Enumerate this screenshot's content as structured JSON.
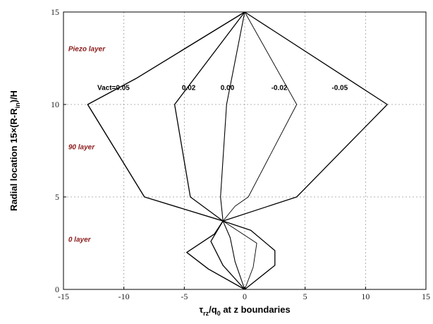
{
  "chart_data": {
    "type": "line",
    "xlim": [
      -15,
      15
    ],
    "ylim": [
      0,
      15
    ],
    "xticks": [
      -15,
      -10,
      -5,
      0,
      5,
      10,
      15
    ],
    "yticks": [
      0,
      5,
      10,
      15
    ],
    "grid": true,
    "xlabel": {
      "main": "τ",
      "sub1": "rz",
      "mid": "/q",
      "sub2": "0",
      "tail": " at z boundaries"
    },
    "ylabel": {
      "pre": "Radial location  15×(R-R",
      "sub": "in",
      "post": ")/H"
    },
    "series": [
      {
        "name": "Vact=0.05",
        "points": [
          [
            0,
            0
          ],
          [
            -3.0,
            1.1
          ],
          [
            -4.8,
            2.0
          ],
          [
            -2.5,
            3.0
          ],
          [
            -1.8,
            3.7
          ],
          [
            -8.3,
            5.0
          ],
          [
            -13.0,
            10.0
          ],
          [
            -9.0,
            11.4
          ],
          [
            0,
            15
          ]
        ]
      },
      {
        "name": "0.02",
        "points": [
          [
            0,
            0
          ],
          [
            -1.8,
            1.3
          ],
          [
            -2.8,
            2.6
          ],
          [
            -1.8,
            3.7
          ],
          [
            -4.5,
            5.0
          ],
          [
            -5.8,
            10.0
          ],
          [
            0,
            15
          ]
        ]
      },
      {
        "name": "0.00",
        "points": [
          [
            0,
            0
          ],
          [
            -0.8,
            1.5
          ],
          [
            -1.2,
            2.8
          ],
          [
            -1.8,
            3.7
          ],
          [
            -2.0,
            5.0
          ],
          [
            -1.5,
            10.0
          ],
          [
            0,
            15
          ]
        ]
      },
      {
        "name": "-0.02",
        "points": [
          [
            0,
            0
          ],
          [
            0.7,
            1.2
          ],
          [
            1.0,
            2.5
          ],
          [
            -1.8,
            3.7
          ],
          [
            -0.8,
            4.5
          ],
          [
            0.3,
            5.0
          ],
          [
            4.3,
            10.0
          ],
          [
            0,
            15
          ]
        ]
      },
      {
        "name": "-0.05",
        "points": [
          [
            0,
            0
          ],
          [
            2.5,
            1.3
          ],
          [
            2.5,
            2.1
          ],
          [
            0.5,
            3.2
          ],
          [
            -1.8,
            3.7
          ],
          [
            4.3,
            5.0
          ],
          [
            11.8,
            10.0
          ],
          [
            0,
            15
          ]
        ]
      }
    ],
    "series_labels": [
      {
        "text": "Vact=0.05",
        "x": -12.2,
        "y": 10.9
      },
      {
        "text": "0.02",
        "x": -5.2,
        "y": 10.9
      },
      {
        "text": "0.00",
        "x": -2.0,
        "y": 10.9
      },
      {
        "text": "-0.02",
        "x": 2.2,
        "y": 10.9
      },
      {
        "text": "-0.05",
        "x": 7.2,
        "y": 10.9
      }
    ],
    "annotations": [
      {
        "text": "Piezo layer",
        "x": -14.6,
        "y": 13.0
      },
      {
        "text": "90 layer",
        "x": -14.6,
        "y": 7.7
      },
      {
        "text": "0 layer",
        "x": -14.6,
        "y": 2.7
      }
    ]
  }
}
